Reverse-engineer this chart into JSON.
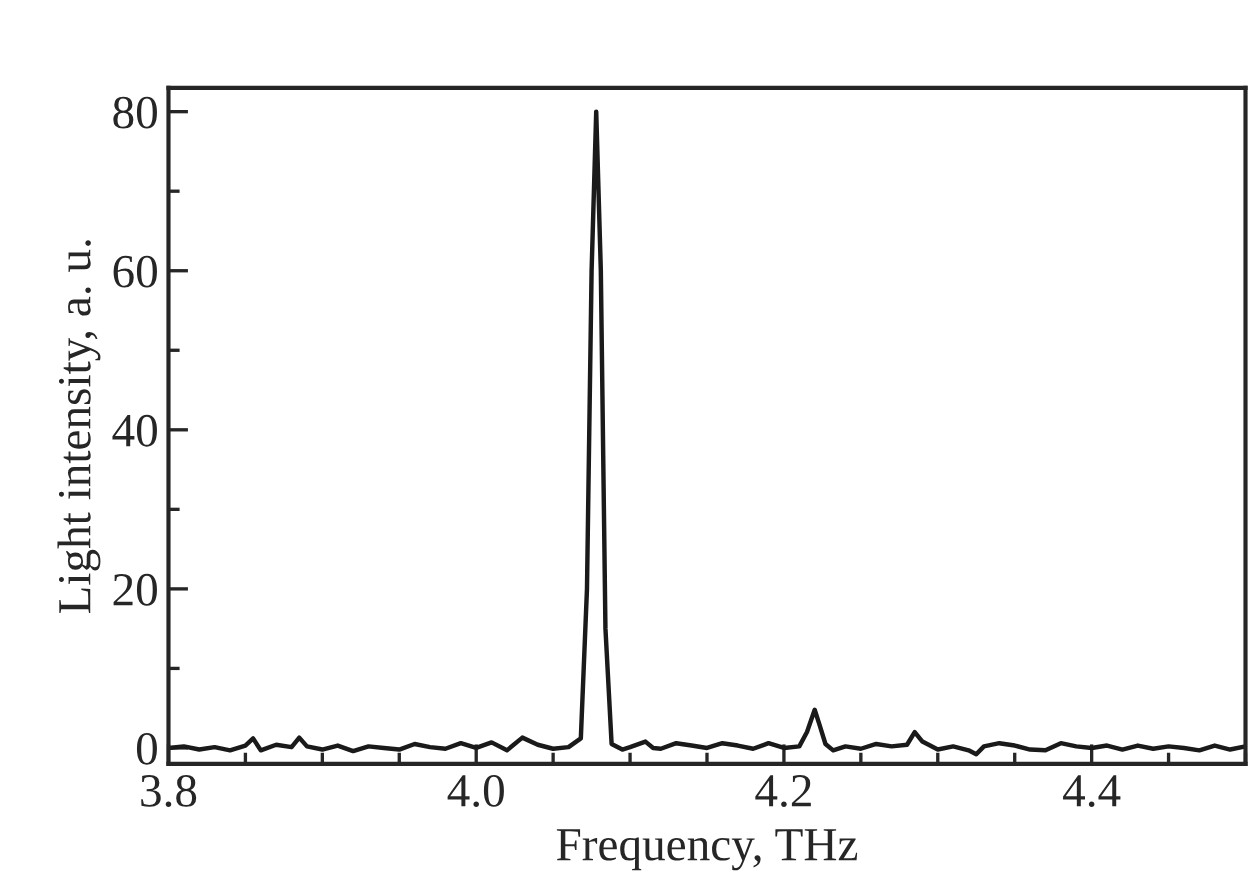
{
  "chart_data": {
    "type": "line",
    "xlabel": "Frequency, THz",
    "ylabel": "Light intensity, a. u.",
    "xlim": [
      3.8,
      4.5
    ],
    "ylim": [
      -2,
      83
    ],
    "xticks": [
      3.8,
      {
        "value": 4.0,
        "label": "4.0"
      },
      4.2,
      4.4
    ],
    "yticks": [
      0,
      20,
      40,
      60,
      80
    ],
    "grid": false,
    "marker": "none",
    "line_style": "solid",
    "series": [
      {
        "color": "#1a1a1a",
        "x": [
          3.8,
          3.81,
          3.82,
          3.83,
          3.84,
          3.85,
          3.855,
          3.86,
          3.87,
          3.88,
          3.885,
          3.89,
          3.9,
          3.91,
          3.92,
          3.93,
          3.94,
          3.95,
          3.96,
          3.97,
          3.98,
          3.99,
          4.0,
          4.01,
          4.02,
          4.03,
          4.04,
          4.05,
          4.06,
          4.068,
          4.072,
          4.075,
          4.078,
          4.081,
          4.084,
          4.088,
          4.095,
          4.1,
          4.11,
          4.115,
          4.12,
          4.13,
          4.14,
          4.15,
          4.16,
          4.17,
          4.18,
          4.19,
          4.2,
          4.21,
          4.215,
          4.22,
          4.223,
          4.227,
          4.232,
          4.24,
          4.25,
          4.26,
          4.27,
          4.28,
          4.285,
          4.29,
          4.3,
          4.31,
          4.32,
          4.325,
          4.33,
          4.34,
          4.35,
          4.36,
          4.37,
          4.38,
          4.39,
          4.4,
          4.41,
          4.42,
          4.43,
          4.44,
          4.45,
          4.46,
          4.47,
          4.48,
          4.49,
          4.5
        ],
        "values": [
          0,
          0.2,
          -0.2,
          0.1,
          -0.3,
          0.3,
          1.2,
          -0.3,
          0.4,
          0.1,
          1.3,
          0.2,
          -0.2,
          0.3,
          -0.4,
          0.2,
          0,
          -0.2,
          0.5,
          0.1,
          -0.1,
          0.6,
          0,
          0.7,
          -0.3,
          1.3,
          0.4,
          -0.1,
          0.1,
          1.2,
          20,
          60,
          80,
          60,
          15,
          0.5,
          -0.2,
          0.1,
          0.8,
          0,
          -0.1,
          0.6,
          0.3,
          0,
          0.6,
          0.3,
          -0.1,
          0.6,
          0,
          0.2,
          2,
          4.8,
          3,
          0.5,
          -0.3,
          0.2,
          -0.1,
          0.5,
          0.2,
          0.4,
          2,
          0.8,
          -0.2,
          0.2,
          -0.3,
          -0.8,
          0.2,
          0.6,
          0.3,
          -0.2,
          -0.3,
          0.6,
          0.2,
          0,
          0.3,
          -0.2,
          0.3,
          -0.1,
          0.2,
          0,
          -0.3,
          0.3,
          -0.2,
          0.2
        ]
      }
    ]
  }
}
